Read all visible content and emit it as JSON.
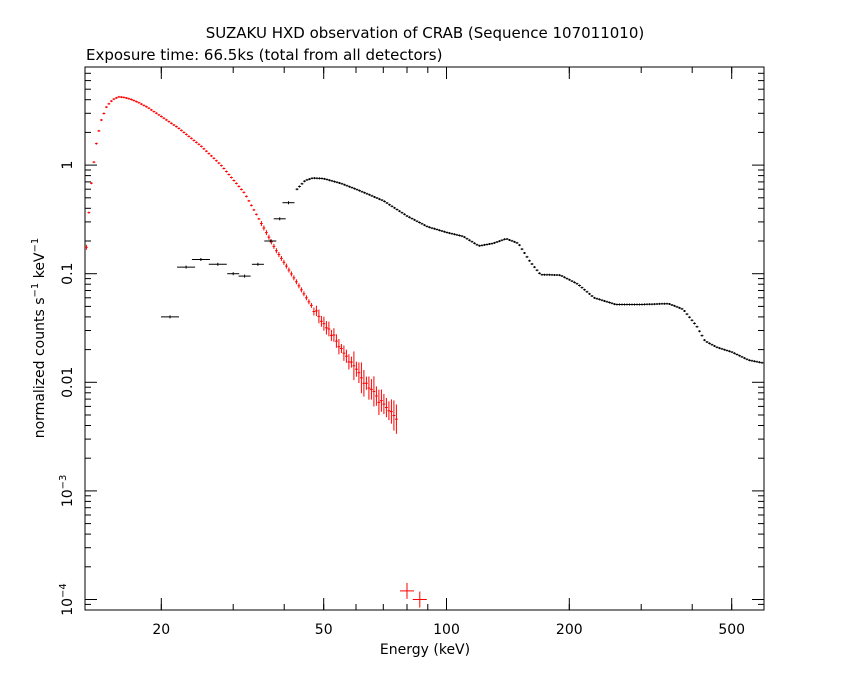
{
  "chart_data": {
    "type": "scatter",
    "title": "SUZAKU HXD observation of CRAB (Sequence 107011010)",
    "subtitle": "Exposure time: 66.5ks (total from all detectors)",
    "xlabel": "Energy (keV)",
    "ylabel": {
      "prefix": "normalized counts s",
      "exp1": "−1",
      "mid": " keV",
      "exp2": "−1"
    },
    "x_scale": "log",
    "y_scale": "log",
    "xlim": [
      13,
      600
    ],
    "ylim": [
      8e-05,
      8
    ],
    "x_ticks": [
      {
        "value": 20,
        "label": "20"
      },
      {
        "value": 50,
        "label": "50"
      },
      {
        "value": 100,
        "label": "100"
      },
      {
        "value": 200,
        "label": "200"
      },
      {
        "value": 500,
        "label": "500"
      }
    ],
    "y_ticks": [
      {
        "value": 1,
        "mant": "1",
        "exp": ""
      },
      {
        "value": 0.1,
        "mant": "0.1",
        "exp": ""
      },
      {
        "value": 0.01,
        "mant": "0.01",
        "exp": ""
      },
      {
        "value": 0.001,
        "mant": "10",
        "exp": "−3"
      },
      {
        "value": 0.0001,
        "mant": "10",
        "exp": "−4"
      }
    ],
    "legend": "none",
    "grid": false,
    "series": [
      {
        "color": "#ff0000",
        "points": [
          {
            "x": 13.1,
            "y": 0.175
          },
          {
            "x": 13.4,
            "y": 0.57
          },
          {
            "x": 13.8,
            "y": 1.45
          },
          {
            "x": 14.2,
            "y": 2.5
          },
          {
            "x": 14.7,
            "y": 3.5
          },
          {
            "x": 15.2,
            "y": 4.0
          },
          {
            "x": 15.7,
            "y": 4.25
          },
          {
            "x": 16.2,
            "y": 4.2
          },
          {
            "x": 16.8,
            "y": 4.05
          },
          {
            "x": 17.5,
            "y": 3.8
          },
          {
            "x": 18.5,
            "y": 3.4
          },
          {
            "x": 20,
            "y": 2.8
          },
          {
            "x": 22,
            "y": 2.2
          },
          {
            "x": 25,
            "y": 1.5
          },
          {
            "x": 28,
            "y": 1.0
          },
          {
            "x": 32,
            "y": 0.55
          },
          {
            "x": 35,
            "y": 0.3
          },
          {
            "x": 38,
            "y": 0.17
          },
          {
            "x": 42,
            "y": 0.095
          },
          {
            "x": 46,
            "y": 0.055
          },
          {
            "x": 50,
            "y": 0.035
          },
          {
            "x": 55,
            "y": 0.021
          },
          {
            "x": 60,
            "y": 0.013
          },
          {
            "x": 65,
            "y": 0.0085
          },
          {
            "x": 70,
            "y": 0.0062
          },
          {
            "x": 76,
            "y": 0.0045
          },
          {
            "x": 80,
            "y": 0.00012,
            "sparse": true
          },
          {
            "x": 86,
            "y": 0.0001,
            "sparse": true
          }
        ]
      },
      {
        "color": "#000000",
        "points": [
          {
            "x": 21,
            "y": 0.04,
            "sparse": true
          },
          {
            "x": 23,
            "y": 0.115,
            "sparse": true
          },
          {
            "x": 25,
            "y": 0.135,
            "sparse": true
          },
          {
            "x": 27.5,
            "y": 0.122,
            "sparse": true
          },
          {
            "x": 30,
            "y": 0.1,
            "sparse": true
          },
          {
            "x": 32,
            "y": 0.095,
            "sparse": true
          },
          {
            "x": 34.5,
            "y": 0.122,
            "sparse": true
          },
          {
            "x": 37,
            "y": 0.2,
            "sparse": true
          },
          {
            "x": 39,
            "y": 0.32,
            "sparse": true
          },
          {
            "x": 41,
            "y": 0.45,
            "sparse": true
          },
          {
            "x": 43,
            "y": 0.6
          },
          {
            "x": 45,
            "y": 0.72
          },
          {
            "x": 47,
            "y": 0.76
          },
          {
            "x": 50,
            "y": 0.75
          },
          {
            "x": 55,
            "y": 0.68
          },
          {
            "x": 60,
            "y": 0.6
          },
          {
            "x": 70,
            "y": 0.47
          },
          {
            "x": 80,
            "y": 0.34
          },
          {
            "x": 90,
            "y": 0.27
          },
          {
            "x": 100,
            "y": 0.24
          },
          {
            "x": 110,
            "y": 0.22
          },
          {
            "x": 120,
            "y": 0.18
          },
          {
            "x": 130,
            "y": 0.19
          },
          {
            "x": 140,
            "y": 0.21
          },
          {
            "x": 150,
            "y": 0.19
          },
          {
            "x": 160,
            "y": 0.13
          },
          {
            "x": 170,
            "y": 0.098
          },
          {
            "x": 190,
            "y": 0.097
          },
          {
            "x": 210,
            "y": 0.08
          },
          {
            "x": 230,
            "y": 0.06
          },
          {
            "x": 260,
            "y": 0.052
          },
          {
            "x": 300,
            "y": 0.052
          },
          {
            "x": 350,
            "y": 0.053
          },
          {
            "x": 380,
            "y": 0.047
          },
          {
            "x": 410,
            "y": 0.033
          },
          {
            "x": 430,
            "y": 0.024
          },
          {
            "x": 460,
            "y": 0.021
          },
          {
            "x": 500,
            "y": 0.019
          },
          {
            "x": 550,
            "y": 0.016
          },
          {
            "x": 600,
            "y": 0.015
          }
        ]
      }
    ]
  }
}
